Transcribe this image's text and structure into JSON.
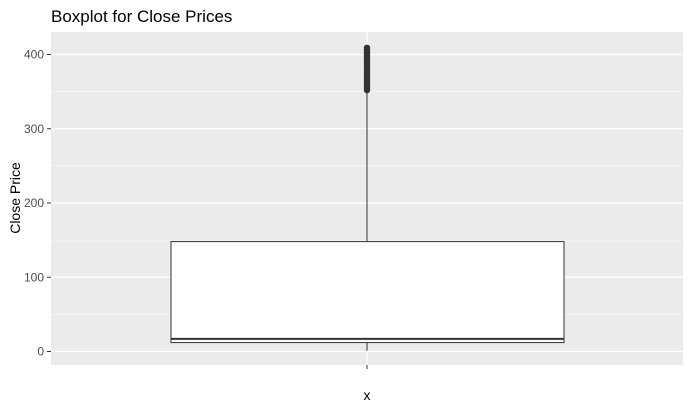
{
  "chart_data": {
    "type": "boxplot",
    "title": "Boxplot for Close Prices",
    "xlabel": "x",
    "ylabel": "Close Price",
    "ylim": [
      -20,
      425
    ],
    "yticks": [
      0,
      100,
      200,
      300,
      400
    ],
    "grid": true,
    "legend": "none",
    "box": {
      "min": 1,
      "q1": 12,
      "median": 17,
      "q3": 148,
      "whisker_high": 352
    },
    "outliers": [
      352,
      355,
      358,
      361,
      364,
      367,
      370,
      373,
      376,
      379,
      382,
      385,
      388,
      391,
      394,
      397,
      400,
      403,
      406,
      409
    ],
    "colors": {
      "panel": "#ebebeb",
      "gridline": "#ffffff",
      "box_fill": "#ffffff",
      "box_line": "#333333",
      "outlier": "#333333"
    }
  }
}
